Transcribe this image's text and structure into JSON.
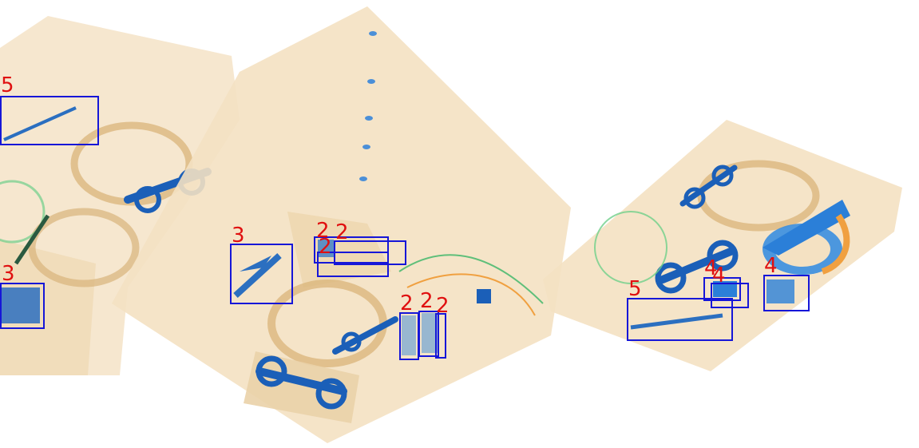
{
  "image": {
    "description_colors": {
      "background": "#ffffff",
      "tray": "#f3dfc0",
      "tray_edge": "#e9cfa4",
      "coil": "#d9b47a",
      "metal_blue": "#1b5fb8",
      "organic_green": "#5fbf7a",
      "organic_orange": "#f0a040",
      "box_color": "#1616d8",
      "label_color": "#e01010"
    }
  },
  "detections": [
    {
      "label": "5"
    },
    {
      "label": "3"
    },
    {
      "label": "3"
    },
    {
      "label": "2"
    },
    {
      "label": "2"
    },
    {
      "label": "2"
    },
    {
      "label": "2"
    },
    {
      "label": "2"
    },
    {
      "label": "2"
    },
    {
      "label": "5"
    },
    {
      "label": "4"
    },
    {
      "label": "4"
    },
    {
      "label": "4"
    }
  ]
}
